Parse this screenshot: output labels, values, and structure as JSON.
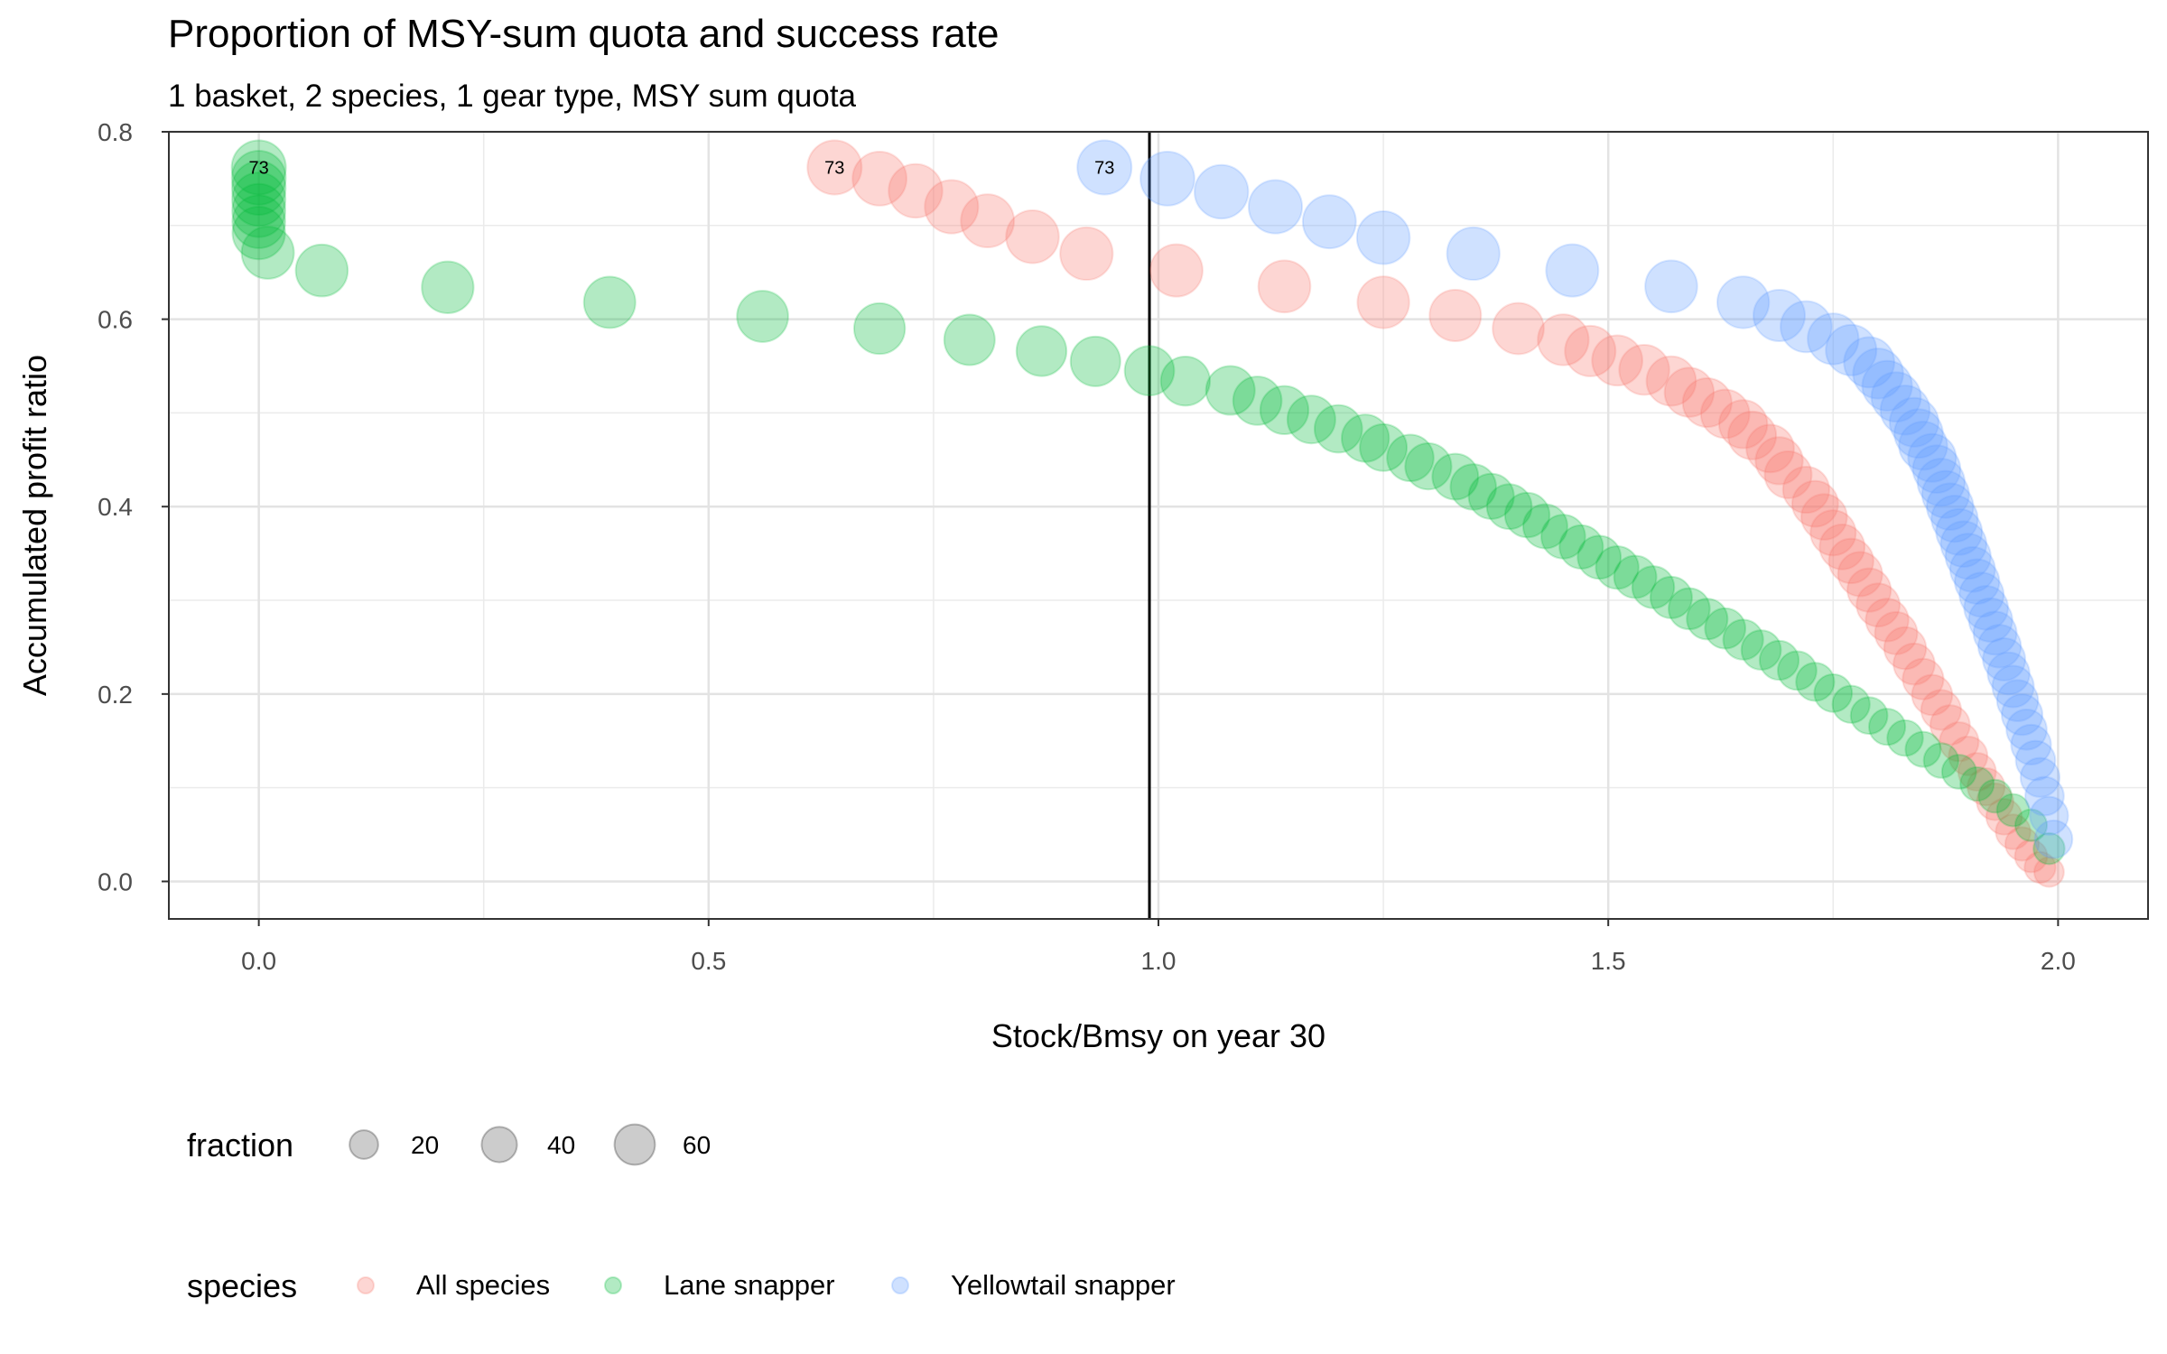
{
  "chart_data": {
    "type": "scatter",
    "title": "Proportion of MSY-sum quota and success rate",
    "subtitle": "1 basket, 2 species, 1 gear type, MSY sum quota",
    "xlabel": "Stock/Bmsy on year 30",
    "ylabel": "Accumulated profit ratio",
    "xlim": [
      -0.1,
      2.1
    ],
    "ylim": [
      -0.04,
      0.8
    ],
    "xticks": [
      0.0,
      0.5,
      1.0,
      1.5,
      2.0
    ],
    "xtick_labels": [
      "0.0",
      "0.5",
      "1.0",
      "1.5",
      "2.0"
    ],
    "yticks": [
      0.0,
      0.2,
      0.4,
      0.6,
      0.8
    ],
    "ytick_labels": [
      "0.0",
      "0.2",
      "0.4",
      "0.6",
      "0.8"
    ],
    "grid": true,
    "vline_x": 0.99,
    "point_opacity": 0.3,
    "size_legend": {
      "title": "fraction",
      "values": [
        20,
        40,
        60
      ],
      "labels": [
        "20",
        "40",
        "60"
      ]
    },
    "species_legend": {
      "title": "species"
    },
    "size_domain": [
      1,
      73
    ],
    "series": [
      {
        "name": "All species",
        "color": "#F8766D",
        "x": [
          0.64,
          0.69,
          0.73,
          0.77,
          0.81,
          0.86,
          0.92,
          1.02,
          1.14,
          1.25,
          1.33,
          1.4,
          1.45,
          1.48,
          1.51,
          1.54,
          1.57,
          1.59,
          1.61,
          1.63,
          1.65,
          1.66,
          1.68,
          1.69,
          1.7,
          1.72,
          1.73,
          1.74,
          1.75,
          1.76,
          1.77,
          1.78,
          1.79,
          1.8,
          1.81,
          1.82,
          1.83,
          1.84,
          1.85,
          1.86,
          1.87,
          1.88,
          1.89,
          1.9,
          1.91,
          1.92,
          1.93,
          1.94,
          1.95,
          1.96,
          1.97,
          1.98,
          1.99
        ],
        "y": [
          0.762,
          0.75,
          0.737,
          0.72,
          0.705,
          0.688,
          0.67,
          0.652,
          0.635,
          0.618,
          0.604,
          0.59,
          0.578,
          0.566,
          0.556,
          0.546,
          0.534,
          0.522,
          0.511,
          0.499,
          0.488,
          0.476,
          0.462,
          0.449,
          0.434,
          0.418,
          0.403,
          0.389,
          0.372,
          0.357,
          0.342,
          0.328,
          0.311,
          0.295,
          0.279,
          0.265,
          0.249,
          0.232,
          0.216,
          0.199,
          0.183,
          0.167,
          0.149,
          0.134,
          0.117,
          0.101,
          0.085,
          0.069,
          0.053,
          0.04,
          0.027,
          0.015,
          0.01
        ],
        "fraction": [
          73,
          72,
          71,
          70,
          69,
          68,
          67,
          66,
          65,
          64,
          63,
          62,
          61,
          60,
          59,
          58,
          56,
          55,
          54,
          53,
          52,
          51,
          50,
          49,
          48,
          46,
          45,
          44,
          43,
          42,
          41,
          40,
          38,
          37,
          36,
          35,
          34,
          32,
          31,
          30,
          29,
          28,
          27,
          26,
          24,
          23,
          22,
          20,
          18,
          16,
          14,
          12,
          10
        ],
        "label_first": "73"
      },
      {
        "name": "Lane snapper",
        "color": "#00BA38",
        "x": [
          0.0,
          0.0,
          0.0,
          0.0,
          0.0,
          0.0,
          0.0,
          0.01,
          0.07,
          0.21,
          0.39,
          0.56,
          0.69,
          0.79,
          0.87,
          0.93,
          0.99,
          1.03,
          1.08,
          1.11,
          1.14,
          1.17,
          1.2,
          1.23,
          1.25,
          1.28,
          1.3,
          1.33,
          1.35,
          1.37,
          1.39,
          1.41,
          1.43,
          1.45,
          1.47,
          1.49,
          1.51,
          1.53,
          1.55,
          1.57,
          1.59,
          1.61,
          1.63,
          1.65,
          1.67,
          1.69,
          1.71,
          1.73,
          1.75,
          1.77,
          1.79,
          1.81,
          1.83,
          1.85,
          1.87,
          1.89,
          1.91,
          1.93,
          1.95,
          1.97,
          1.99
        ],
        "y": [
          0.762,
          0.751,
          0.74,
          0.728,
          0.716,
          0.704,
          0.692,
          0.671,
          0.652,
          0.634,
          0.618,
          0.603,
          0.59,
          0.578,
          0.566,
          0.555,
          0.545,
          0.534,
          0.524,
          0.513,
          0.503,
          0.493,
          0.483,
          0.473,
          0.463,
          0.452,
          0.443,
          0.432,
          0.421,
          0.411,
          0.4,
          0.391,
          0.379,
          0.368,
          0.357,
          0.346,
          0.335,
          0.325,
          0.314,
          0.303,
          0.291,
          0.28,
          0.27,
          0.258,
          0.247,
          0.236,
          0.225,
          0.213,
          0.201,
          0.189,
          0.177,
          0.165,
          0.153,
          0.141,
          0.129,
          0.117,
          0.104,
          0.091,
          0.076,
          0.06,
          0.035
        ],
        "fraction": [
          73,
          72,
          71,
          70,
          69,
          68,
          67,
          66,
          65,
          64,
          63,
          62,
          61,
          60,
          58,
          57,
          56,
          55,
          54,
          53,
          52,
          51,
          50,
          49,
          48,
          47,
          46,
          45,
          44,
          43,
          42,
          41,
          40,
          39,
          38,
          37,
          36,
          35,
          34,
          33,
          32,
          31,
          30,
          29,
          28,
          27,
          26,
          25,
          24,
          23,
          22,
          21,
          20,
          19,
          18,
          17,
          16,
          15,
          14,
          13,
          12
        ],
        "label_first": "73"
      },
      {
        "name": "Yellowtail snapper",
        "color": "#619CFF",
        "x": [
          0.94,
          1.01,
          1.07,
          1.13,
          1.19,
          1.25,
          1.35,
          1.46,
          1.57,
          1.65,
          1.69,
          1.72,
          1.75,
          1.77,
          1.79,
          1.8,
          1.81,
          1.82,
          1.83,
          1.84,
          1.845,
          1.85,
          1.86,
          1.865,
          1.87,
          1.875,
          1.88,
          1.885,
          1.89,
          1.895,
          1.9,
          1.905,
          1.91,
          1.915,
          1.92,
          1.925,
          1.93,
          1.935,
          1.94,
          1.945,
          1.95,
          1.955,
          1.96,
          1.965,
          1.97,
          1.975,
          1.98,
          1.985,
          1.99,
          1.995
        ],
        "y": [
          0.762,
          0.75,
          0.736,
          0.72,
          0.704,
          0.687,
          0.67,
          0.652,
          0.635,
          0.618,
          0.604,
          0.592,
          0.579,
          0.567,
          0.554,
          0.542,
          0.529,
          0.517,
          0.503,
          0.49,
          0.478,
          0.465,
          0.452,
          0.44,
          0.426,
          0.413,
          0.4,
          0.387,
          0.373,
          0.36,
          0.347,
          0.333,
          0.32,
          0.306,
          0.292,
          0.279,
          0.265,
          0.251,
          0.237,
          0.222,
          0.208,
          0.193,
          0.178,
          0.162,
          0.146,
          0.129,
          0.111,
          0.091,
          0.07,
          0.045
        ],
        "fraction": [
          73,
          72,
          71,
          70,
          69,
          68,
          67,
          66,
          65,
          64,
          63,
          62,
          61,
          60,
          59,
          58,
          57,
          56,
          55,
          54,
          53,
          52,
          51,
          50,
          49,
          48,
          47,
          46,
          45,
          44,
          43,
          42,
          41,
          40,
          39,
          38,
          37,
          36,
          35,
          34,
          33,
          32,
          31,
          30,
          29,
          28,
          27,
          26,
          25,
          24
        ],
        "label_first": "73"
      }
    ]
  }
}
